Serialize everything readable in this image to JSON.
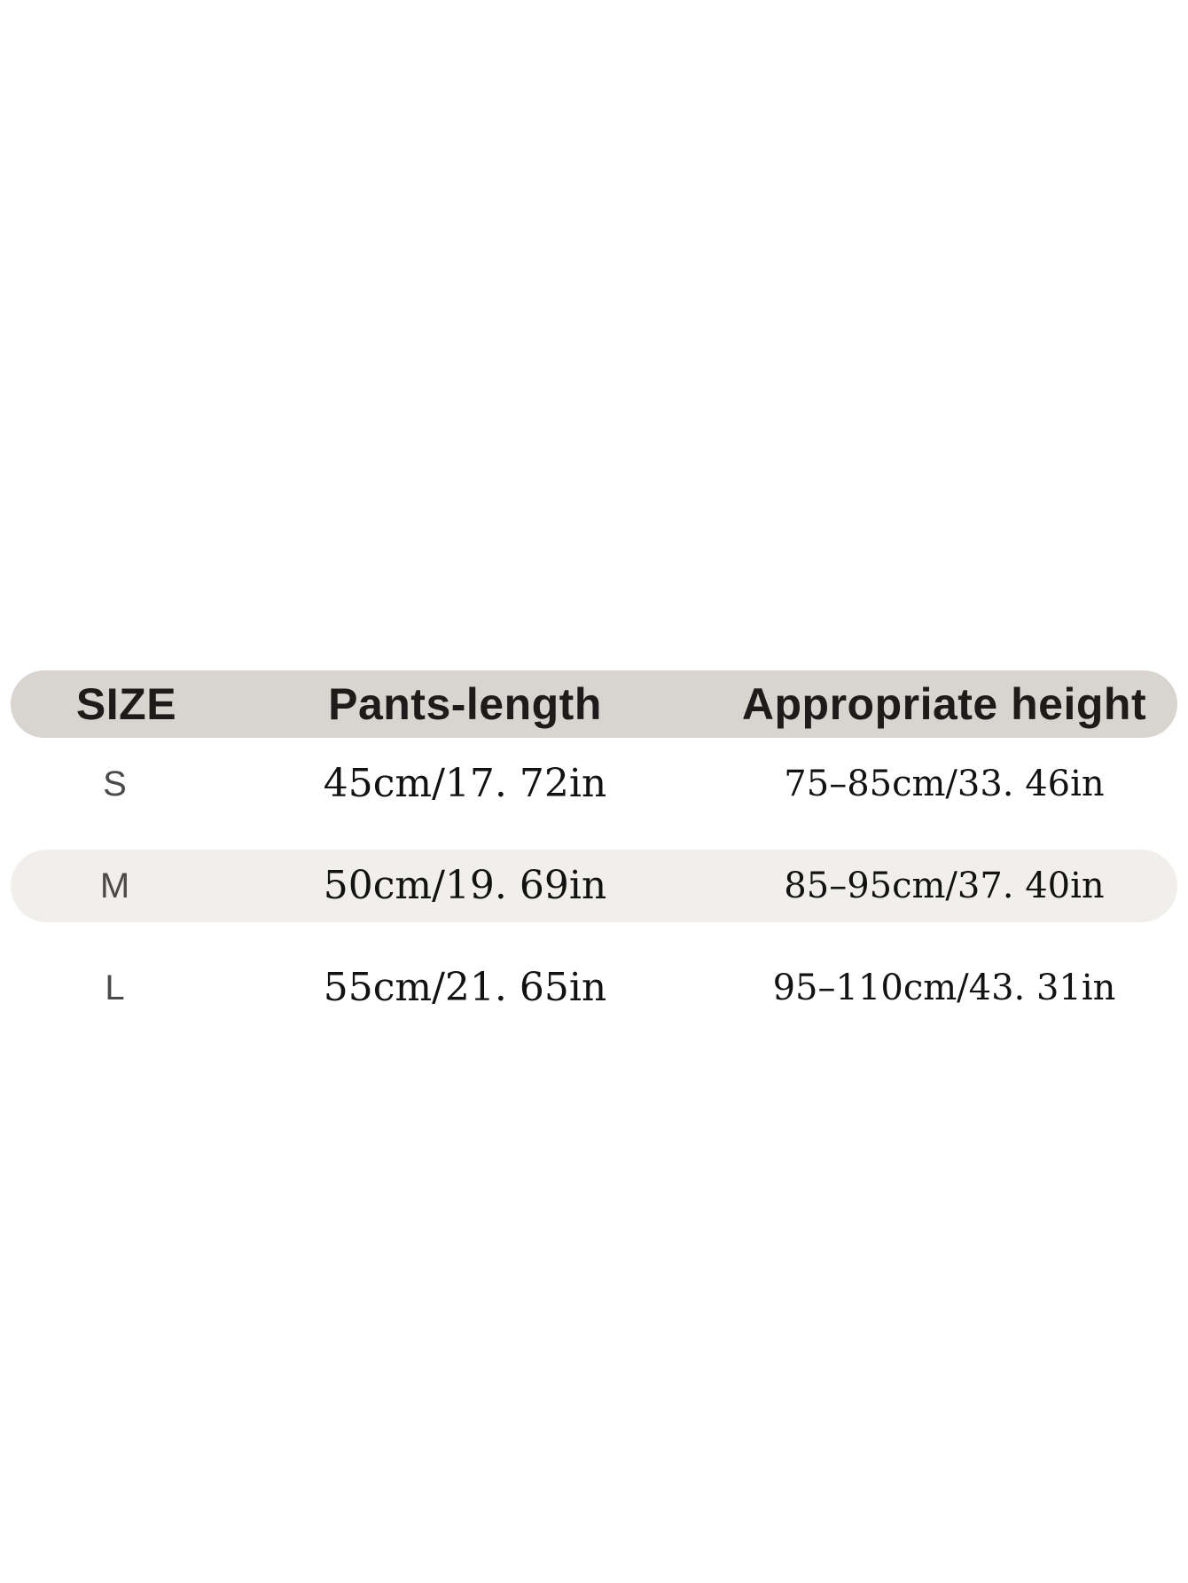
{
  "size_chart": {
    "header": {
      "size": "SIZE",
      "pants_length": "Pants-length",
      "appropriate_height": "Appropriate height"
    },
    "rows": [
      {
        "size": "S",
        "pants_length": "45cm/17. 72in",
        "appropriate_height": "75–85cm/33. 46in"
      },
      {
        "size": "M",
        "pants_length": "50cm/19. 69in",
        "appropriate_height": "85–95cm/37. 40in"
      },
      {
        "size": "L",
        "pants_length": "55cm/21. 65in",
        "appropriate_height": "95–110cm/43. 31in"
      }
    ],
    "colors": {
      "page_bg": "#ffffff",
      "header_bg": "#d8d4cf",
      "alt_row_bg": "#f1efeb",
      "header_text": "#1e1c1a",
      "size_text": "#4c4a48",
      "value_text": "#121212"
    }
  }
}
